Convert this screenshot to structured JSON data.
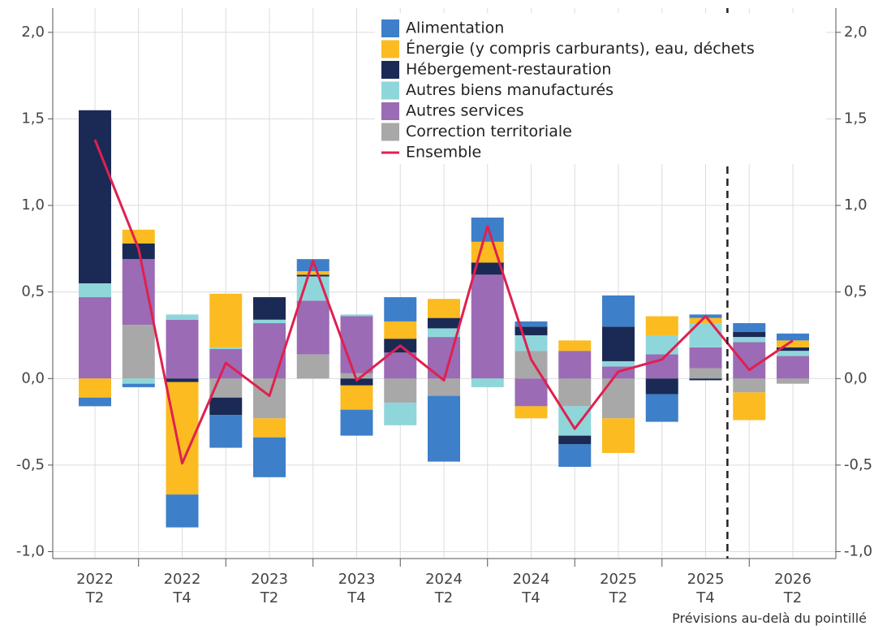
{
  "chart_data": {
    "type": "stacked_bar_line",
    "annotation": "Prévisions au-delà du pointillé",
    "categories": [
      "2022\nT2",
      null,
      "2022\nT4",
      null,
      "2023\nT2",
      null,
      "2023\nT4",
      null,
      "2024\nT2",
      null,
      "2024\nT4",
      null,
      "2025\nT2",
      null,
      "2025\nT4",
      null,
      "2026\nT2"
    ],
    "series": [
      {
        "name": "Alimentation",
        "color": "#3d7fc9",
        "values": [
          -0.05,
          -0.02,
          -0.19,
          -0.19,
          -0.23,
          0.07,
          -0.15,
          0.14,
          -0.38,
          0.14,
          0.03,
          -0.13,
          0.18,
          -0.16,
          0.02,
          0.05,
          0.04
        ]
      },
      {
        "name": "Énergie (y compris carburants), eau, déchets",
        "color": "#fbbb21",
        "values": [
          -0.11,
          0.08,
          -0.65,
          0.31,
          -0.11,
          0.02,
          -0.14,
          0.1,
          0.11,
          0.12,
          -0.07,
          0.06,
          -0.2,
          0.11,
          0.03,
          -0.16,
          0.04
        ]
      },
      {
        "name": "Hébergement-restauration",
        "color": "#1b2a55",
        "values": [
          1.0,
          0.09,
          -0.02,
          -0.1,
          0.13,
          0.01,
          -0.04,
          0.08,
          0.06,
          0.07,
          0.05,
          -0.05,
          0.2,
          -0.09,
          -0.01,
          0.03,
          0.02
        ]
      },
      {
        "name": "Autres biens manufacturés",
        "color": "#8fd6da",
        "values": [
          0.08,
          -0.03,
          0.03,
          0.01,
          0.02,
          0.14,
          0.01,
          -0.13,
          0.05,
          -0.05,
          0.09,
          -0.17,
          0.03,
          0.11,
          0.14,
          0.03,
          0.03
        ]
      },
      {
        "name": "Autres services",
        "color": "#9b6bb5",
        "values": [
          0.47,
          0.38,
          0.34,
          0.17,
          0.32,
          0.31,
          0.33,
          0.15,
          0.24,
          0.6,
          -0.16,
          0.16,
          0.07,
          0.14,
          0.12,
          0.21,
          0.13
        ]
      },
      {
        "name": "Correction territoriale",
        "color": "#a8a8a8",
        "values": [
          0,
          0.31,
          0,
          -0.11,
          -0.23,
          0.14,
          0.03,
          -0.14,
          -0.1,
          0,
          0.16,
          -0.16,
          -0.23,
          0,
          0.06,
          -0.08,
          -0.03
        ]
      },
      {
        "name": "Ensemble",
        "color": "#e0204f",
        "type": "line",
        "values": [
          1.38,
          0.75,
          -0.49,
          0.09,
          -0.1,
          0.68,
          -0.01,
          0.19,
          -0.01,
          0.88,
          0.11,
          -0.29,
          0.04,
          0.11,
          0.36,
          0.05,
          0.22
        ]
      }
    ],
    "ylim": [
      -1.04,
      2.14
    ],
    "yticks": [
      {
        "value": -1,
        "label": "-1,0"
      },
      {
        "value": -0.5,
        "label": "-0,5"
      },
      {
        "value": 0,
        "label": "0,0"
      },
      {
        "value": 0.5,
        "label": "0,5"
      },
      {
        "value": 1,
        "label": "1,0"
      },
      {
        "value": 1.5,
        "label": "1,5"
      },
      {
        "value": 2,
        "label": "2,0"
      }
    ],
    "grid": true
  }
}
